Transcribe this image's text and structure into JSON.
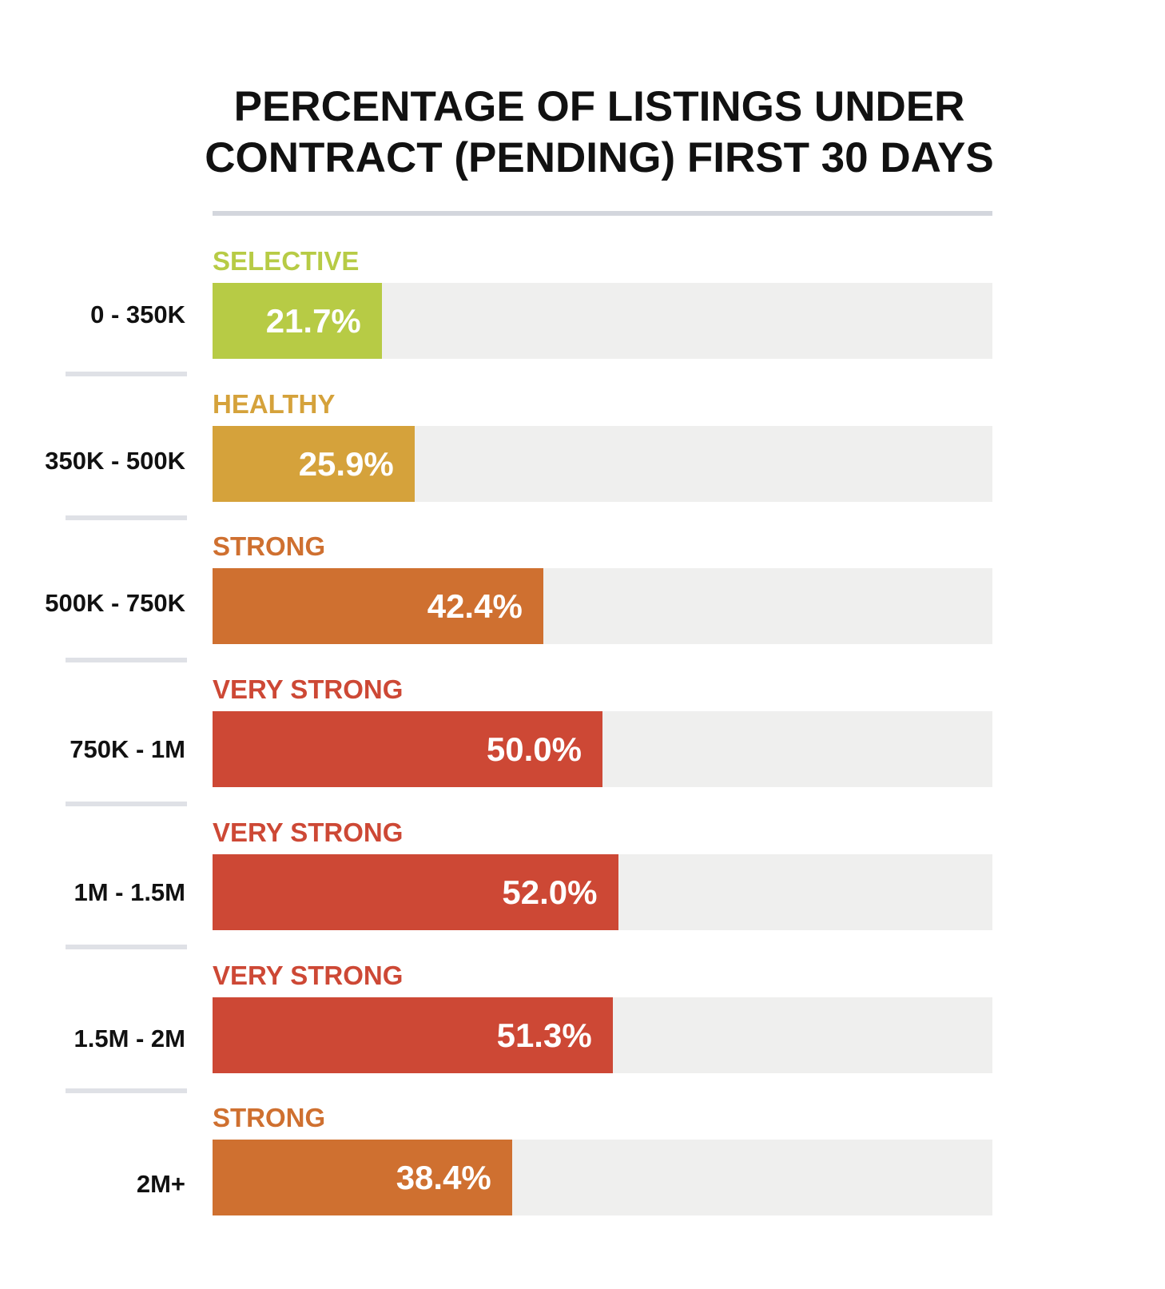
{
  "chart_data": {
    "type": "bar",
    "title_lines": [
      "PERCENTAGE OF LISTINGS UNDER",
      "CONTRACT (PENDING) FIRST 30 DAYS"
    ],
    "xlim": [
      0,
      100
    ],
    "bars": [
      {
        "range": "0 - 350K",
        "category": "SELECTIVE",
        "value": 21.7,
        "value_label": "21.7%",
        "color": "#b7cb45"
      },
      {
        "range": "350K - 500K",
        "category": "HEALTHY",
        "value": 25.9,
        "value_label": "25.9%",
        "color": "#d5a23b"
      },
      {
        "range": "500K - 750K",
        "category": "STRONG",
        "value": 42.4,
        "value_label": "42.4%",
        "color": "#cf7030"
      },
      {
        "range": "750K - 1M",
        "category": "VERY STRONG",
        "value": 50.0,
        "value_label": "50.0%",
        "color": "#cd4835"
      },
      {
        "range": "1M - 1.5M",
        "category": "VERY STRONG",
        "value": 52.0,
        "value_label": "52.0%",
        "color": "#cd4835"
      },
      {
        "range": "1.5M - 2M",
        "category": "VERY STRONG",
        "value": 51.3,
        "value_label": "51.3%",
        "color": "#cd4835"
      },
      {
        "range": "2M+",
        "category": "STRONG",
        "value": 38.4,
        "value_label": "38.4%",
        "color": "#cf7030"
      }
    ]
  }
}
